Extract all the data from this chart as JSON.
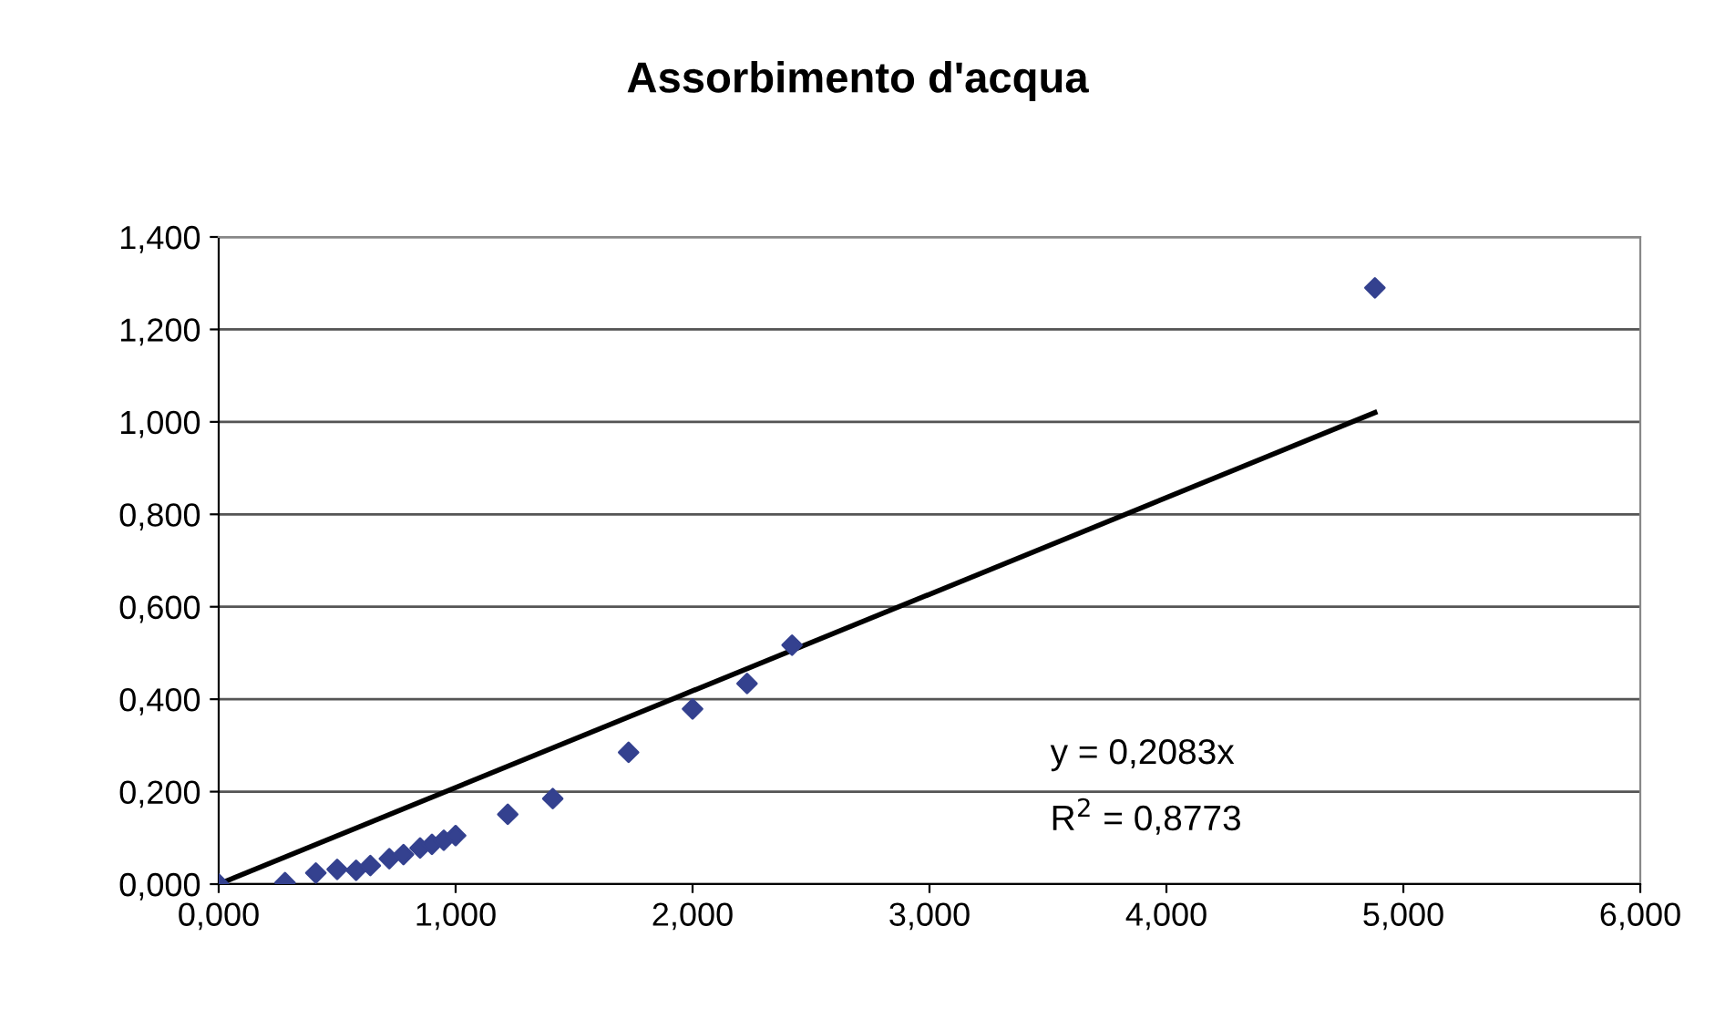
{
  "chart_data": {
    "type": "scatter",
    "title": "Assorbimento d'acqua",
    "marker": "diamond",
    "grid": "y",
    "legend": false,
    "xlim": [
      0,
      6
    ],
    "ylim": [
      0,
      1.4
    ],
    "xticks": [
      {
        "value": 0,
        "label": "0,000"
      },
      {
        "value": 1,
        "label": "1,000"
      },
      {
        "value": 2,
        "label": "2,000"
      },
      {
        "value": 3,
        "label": "3,000"
      },
      {
        "value": 4,
        "label": "4,000"
      },
      {
        "value": 5,
        "label": "5,000"
      },
      {
        "value": 6,
        "label": "6,000"
      }
    ],
    "yticks": [
      {
        "value": 0,
        "label": "0,000"
      },
      {
        "value": 0.2,
        "label": "0,200"
      },
      {
        "value": 0.4,
        "label": "0,400"
      },
      {
        "value": 0.6,
        "label": "0,600"
      },
      {
        "value": 0.8,
        "label": "0,800"
      },
      {
        "value": 1.0,
        "label": "1,000"
      },
      {
        "value": 1.2,
        "label": "1,200"
      },
      {
        "value": 1.4,
        "label": "1,400"
      }
    ],
    "series": [
      {
        "color": "#34418f",
        "x": [
          0,
          0.28,
          0.41,
          0.5,
          0.58,
          0.64,
          0.72,
          0.78,
          0.85,
          0.9,
          0.95,
          1.0,
          1.22,
          1.41,
          1.73,
          2.0,
          2.23,
          2.42,
          4.88
        ],
        "values": [
          0,
          0.003,
          0.024,
          0.032,
          0.03,
          0.04,
          0.055,
          0.064,
          0.078,
          0.086,
          0.095,
          0.105,
          0.151,
          0.185,
          0.285,
          0.379,
          0.434,
          0.517,
          1.29
        ]
      },
      {
        "type": "line",
        "color": "#000000",
        "marker": "none",
        "x": [
          0,
          4.88
        ],
        "values": [
          0,
          1.02
        ]
      }
    ],
    "annotations": [
      "y = 0,2083x",
      "R$^{2}$ = 0,8773"
    ]
  }
}
